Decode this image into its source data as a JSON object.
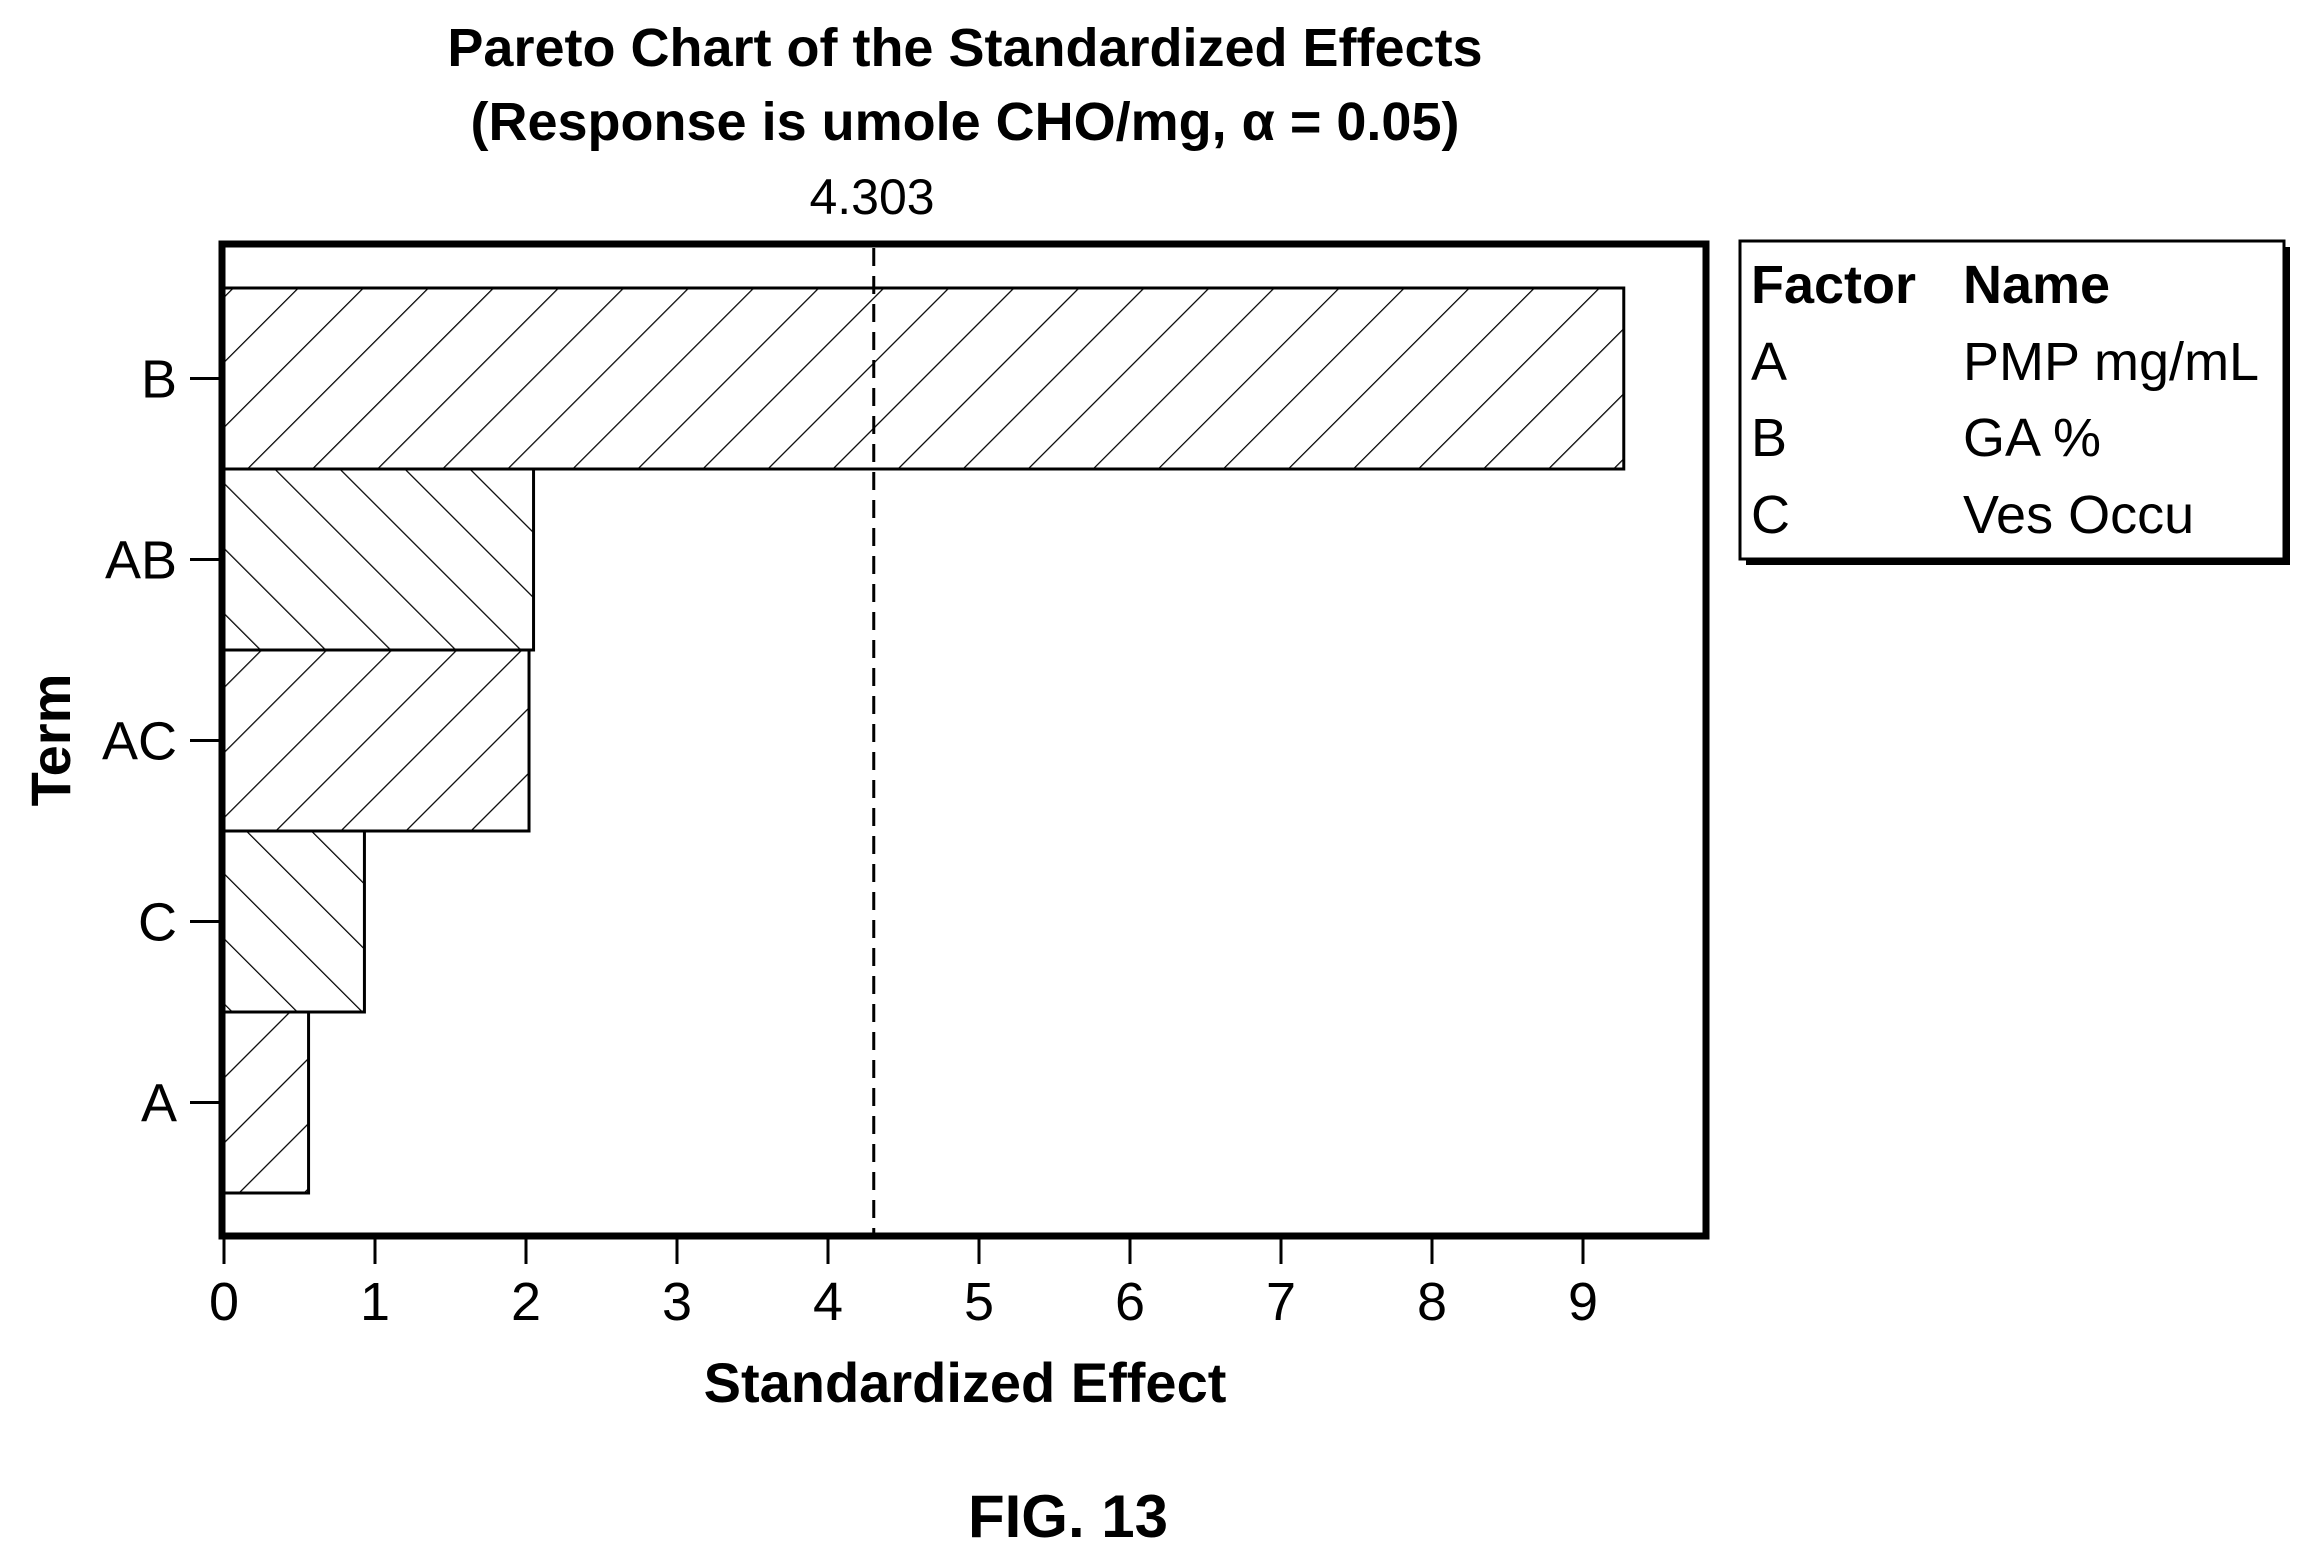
{
  "chart_data": {
    "type": "bar",
    "orientation": "horizontal",
    "title": "Pareto Chart of the Standardized Effects",
    "subtitle": "(Response is umole CHO/mg, α = 0.05)",
    "xlabel": "Standardized Effect",
    "ylabel": "Term",
    "xlim": [
      0,
      9.85
    ],
    "xticks": [
      "0",
      "1",
      "2",
      "3",
      "4",
      "5",
      "6",
      "7",
      "8",
      "9"
    ],
    "categories": [
      "B",
      "AB",
      "AC",
      "C",
      "A"
    ],
    "values": [
      9.27,
      2.05,
      2.02,
      0.93,
      0.56
    ],
    "reference_line": {
      "value": 4.303,
      "label": "4.303"
    },
    "grid": false,
    "bar_fill": "hatched"
  },
  "legend": {
    "header_factor": "Factor",
    "header_name": "Name",
    "rows": [
      {
        "factor": "A",
        "name": "PMP mg/mL"
      },
      {
        "factor": "B",
        "name": "GA %"
      },
      {
        "factor": "C",
        "name": "Ves Occu"
      }
    ]
  },
  "figure_label": "FIG. 13"
}
